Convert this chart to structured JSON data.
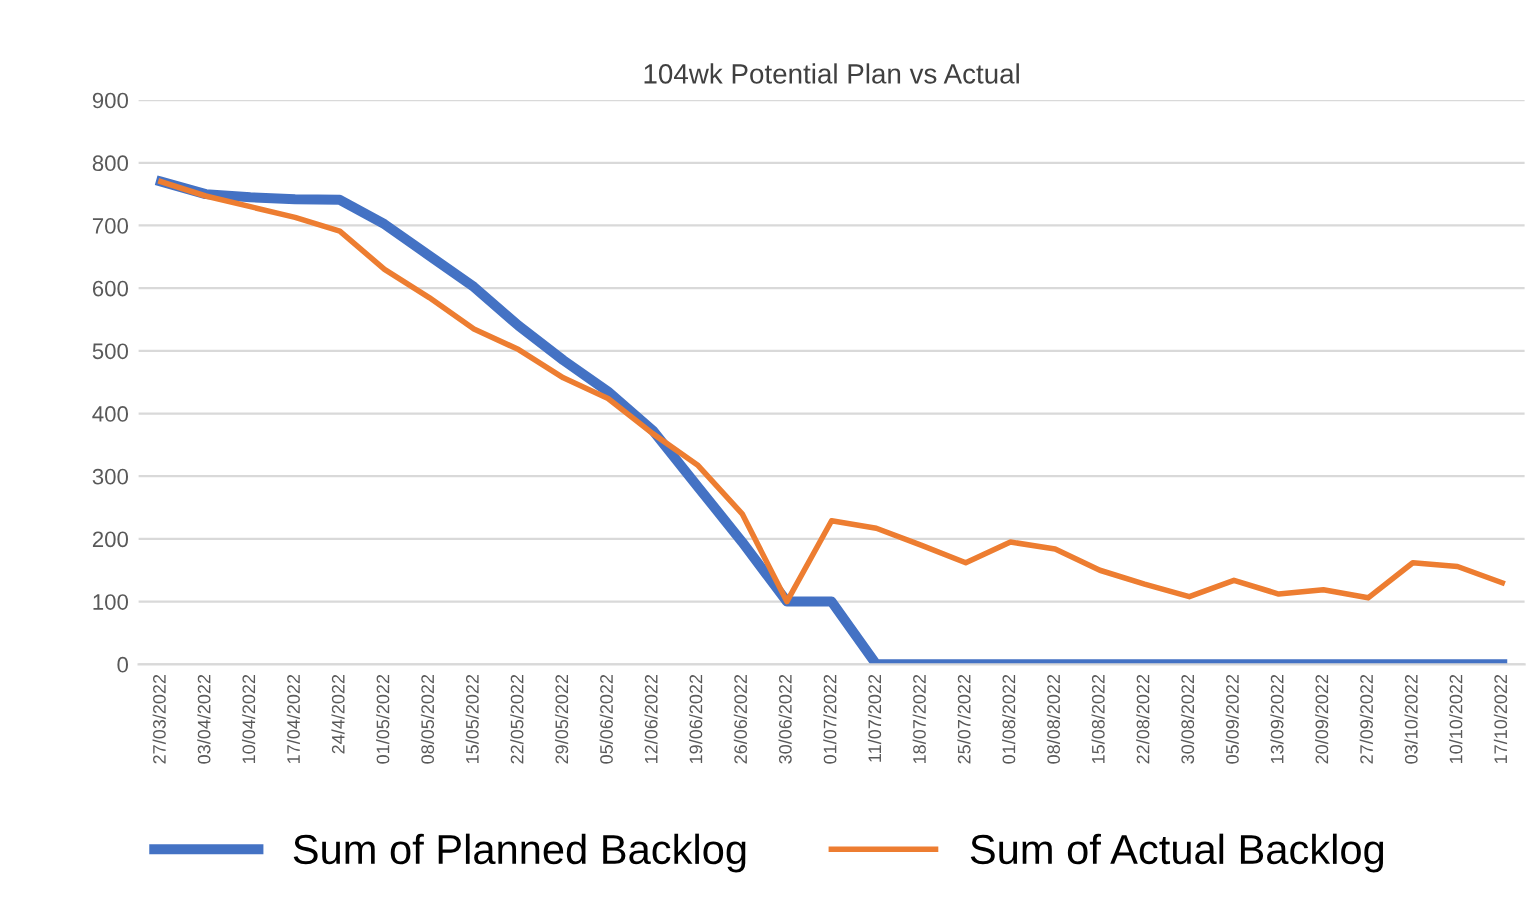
{
  "chart_data": {
    "type": "line",
    "title": "104wk Potential Plan vs Actual",
    "categories": [
      "27/03/2022",
      "03/04/2022",
      "10/04/2022",
      "17/04/2022",
      "24/4/2022",
      "01/05/2022",
      "08/05/2022",
      "15/05/2022",
      "22/05/2022",
      "29/05/2022",
      "05/06/2022",
      "12/06/2022",
      "19/06/2022",
      "26/06/2022",
      "30/06/2022",
      "01/07/2022",
      "11/07/2022",
      "18/07/2022",
      "25/07/2022",
      "01/08/2022",
      "08/08/2022",
      "15/08/2022",
      "22/08/2022",
      "30/08/2022",
      "05/09/2022",
      "13/09/2022",
      "20/09/2022",
      "27/09/2022",
      "03/10/2022",
      "10/10/2022",
      "17/10/2022"
    ],
    "series": [
      {
        "name": "Sum of Planned Backlog",
        "color": "#4472c4",
        "values": [
          770,
          750,
          745,
          742,
          741,
          702,
          652,
          602,
          540,
          485,
          435,
          373,
          284,
          195,
          100,
          100,
          0,
          0,
          0,
          0,
          0,
          0,
          0,
          0,
          0,
          0,
          0,
          0,
          0,
          0,
          0
        ]
      },
      {
        "name": "Sum of Actual Backlog",
        "color": "#ed7d31",
        "values": [
          770,
          747,
          730,
          713,
          691,
          630,
          585,
          535,
          502,
          457,
          424,
          368,
          318,
          240,
          100,
          229,
          217,
          190,
          162,
          195,
          184,
          150,
          128,
          108,
          134,
          112,
          119,
          106,
          162,
          156,
          130
        ]
      }
    ],
    "ylim": [
      0,
      900
    ],
    "yticks": [
      0,
      100,
      200,
      300,
      400,
      500,
      600,
      700,
      800,
      900
    ],
    "grid": "y",
    "legend": "bottom",
    "marker": "none",
    "line_style": "solid"
  }
}
